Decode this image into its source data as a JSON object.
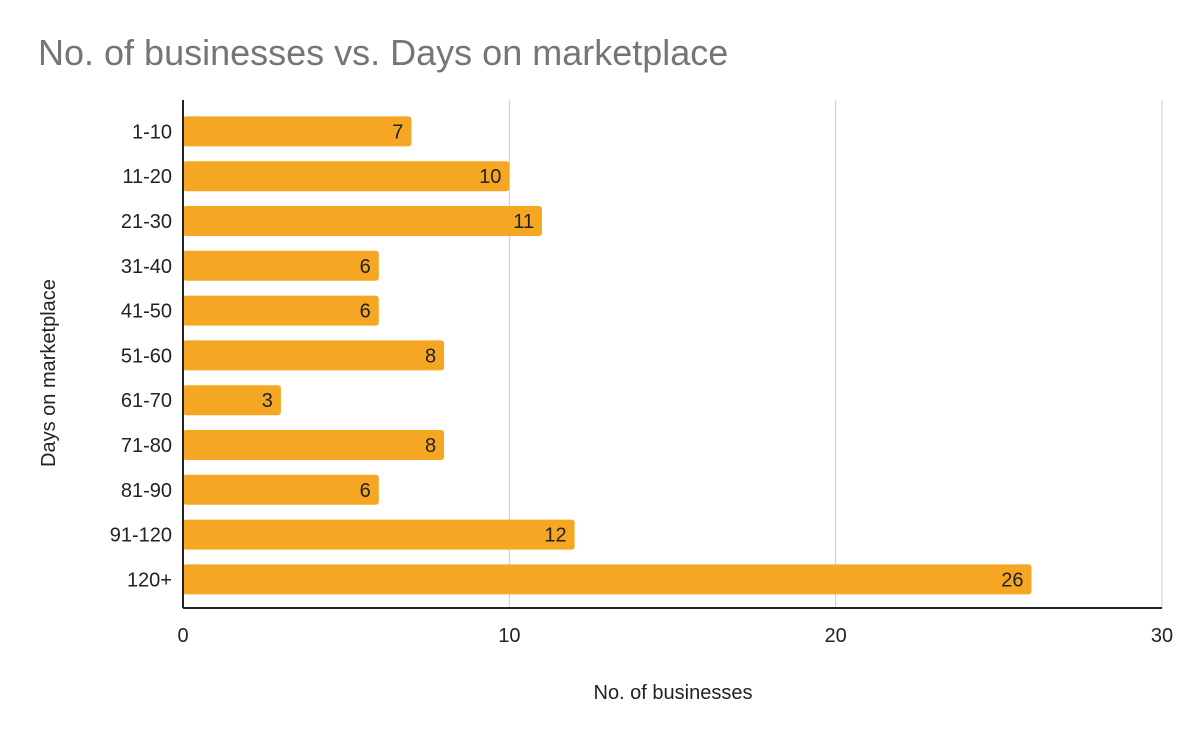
{
  "chart_data": {
    "type": "bar",
    "orientation": "horizontal",
    "title": "No. of businesses vs. Days on marketplace",
    "xlabel": "No. of businesses",
    "ylabel": "Days on marketplace",
    "categories": [
      "1-10",
      "11-20",
      "21-30",
      "31-40",
      "41-50",
      "51-60",
      "61-70",
      "71-80",
      "81-90",
      "91-120",
      "120+"
    ],
    "values": [
      7,
      10,
      11,
      6,
      6,
      8,
      3,
      8,
      6,
      12,
      26
    ],
    "xlim": [
      0,
      30
    ],
    "xticks": [
      0,
      10,
      20,
      30
    ],
    "grid": true,
    "legend": "none",
    "bar_color": "#F5A623",
    "data_labels": true
  }
}
